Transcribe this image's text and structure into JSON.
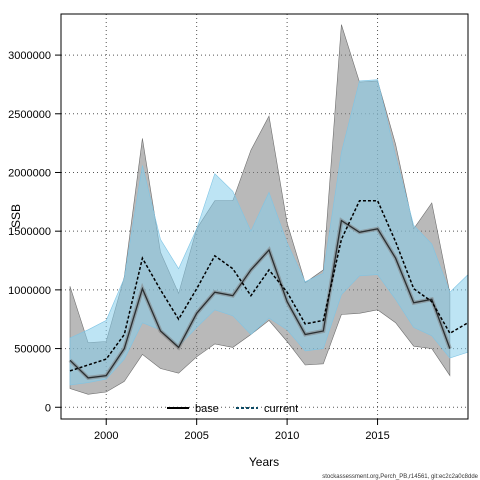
{
  "chart_data": {
    "type": "line",
    "xlabel": "Years",
    "ylabel": "SSB",
    "xlim": [
      1997.5,
      2020.0
    ],
    "ylim": [
      -100000,
      3350000
    ],
    "x_ticks": [
      2000,
      2005,
      2010,
      2015
    ],
    "y_ticks": [
      0,
      500000,
      1000000,
      1500000,
      2000000,
      2500000,
      3000000
    ],
    "grid": true,
    "legend_position": "bottom-center",
    "x": [
      1998,
      1999,
      2000,
      2001,
      2002,
      2003,
      2004,
      2005,
      2006,
      2007,
      2008,
      2009,
      2010,
      2011,
      2012,
      2013,
      2014,
      2015,
      2016,
      2017,
      2018,
      2019,
      2020
    ],
    "series": [
      {
        "name": "base",
        "color": "#000000",
        "band_color": "#808080",
        "line_style": "solid",
        "values": [
          400000,
          250000,
          270000,
          500000,
          1010000,
          650000,
          510000,
          800000,
          980000,
          950000,
          1170000,
          1340000,
          900000,
          620000,
          650000,
          1590000,
          1490000,
          1520000,
          1270000,
          890000,
          920000,
          500000,
          null
        ],
        "lower": [
          160000,
          110000,
          130000,
          220000,
          450000,
          330000,
          290000,
          430000,
          540000,
          510000,
          620000,
          740000,
          560000,
          360000,
          370000,
          790000,
          800000,
          830000,
          720000,
          520000,
          500000,
          270000,
          null
        ],
        "upper": [
          1030000,
          550000,
          560000,
          1110000,
          2290000,
          1320000,
          970000,
          1520000,
          1760000,
          1760000,
          2190000,
          2480000,
          1570000,
          1060000,
          1170000,
          3260000,
          2770000,
          2780000,
          2240000,
          1520000,
          1740000,
          970000,
          null
        ]
      },
      {
        "name": "current",
        "color": "#0c4a64",
        "band_color": "#87ceeb",
        "line_style": "dashed",
        "values": [
          310000,
          360000,
          410000,
          620000,
          1270000,
          1000000,
          750000,
          1010000,
          1290000,
          1180000,
          950000,
          1170000,
          980000,
          710000,
          740000,
          1430000,
          1760000,
          1760000,
          1410000,
          1010000,
          900000,
          630000,
          720000
        ],
        "lower": [
          190000,
          210000,
          240000,
          410000,
          720000,
          660000,
          520000,
          680000,
          830000,
          780000,
          620000,
          760000,
          660000,
          480000,
          500000,
          960000,
          1120000,
          1130000,
          920000,
          680000,
          610000,
          420000,
          470000
        ],
        "upper": [
          590000,
          660000,
          740000,
          1100000,
          2060000,
          1430000,
          1180000,
          1520000,
          1990000,
          1840000,
          1500000,
          1830000,
          1400000,
          1070000,
          1140000,
          2170000,
          2780000,
          2790000,
          2140000,
          1550000,
          1390000,
          980000,
          1130000
        ]
      }
    ]
  },
  "legend": {
    "base_label": "base",
    "current_label": "current"
  },
  "footer_text": "stockassessment.org,Perch_PB,r14561, git:ec2c2a0c8dde"
}
